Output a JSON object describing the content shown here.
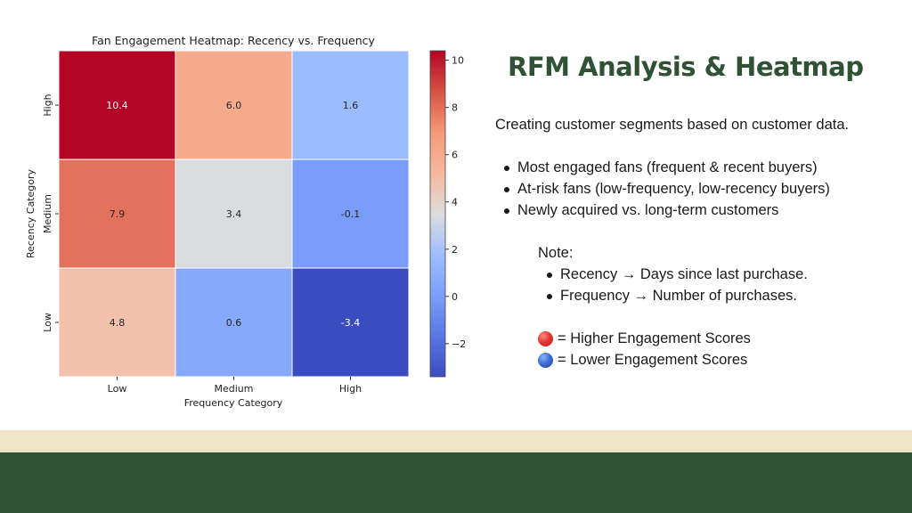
{
  "slide": {
    "title": "RFM Analysis & Heatmap",
    "intro": "Creating customer segments based on customer data.",
    "bullets": [
      "Most engaged fans (frequent & recent buyers)",
      "At-risk fans (low-frequency, low-recency buyers)",
      "Newly acquired vs. long-term customers"
    ],
    "note_label": "Note:",
    "notes": [
      "Recency → Days since last purchase.",
      "Frequency → Number of purchases."
    ],
    "legend": {
      "high": "= Higher Engagement Scores",
      "low": "= Lower Engagement Scores"
    }
  },
  "colors": {
    "title_green": "#2e5233",
    "band_cream": "#efe3c8",
    "band_green": "#2e5233",
    "high_dot": "#e53935",
    "low_dot": "#3f6fd8"
  },
  "chart_data": {
    "type": "heatmap",
    "title": "Fan Engagement Heatmap: Recency vs. Frequency",
    "xlabel": "Frequency Category",
    "ylabel": "Recency Category",
    "x_categories": [
      "Low",
      "Medium",
      "High"
    ],
    "y_categories": [
      "High",
      "Medium",
      "Low"
    ],
    "values": [
      [
        10.4,
        6.0,
        1.6
      ],
      [
        7.9,
        3.4,
        -0.1
      ],
      [
        4.8,
        0.6,
        -3.4
      ]
    ],
    "colorscale": "coolwarm",
    "vmin": -3.4,
    "vmax": 10.4,
    "colorbar_ticks": [
      -2,
      0,
      2,
      4,
      6,
      8,
      10
    ],
    "colorbar_tick_labels": [
      "−2",
      "0",
      "2",
      "4",
      "6",
      "8",
      "10"
    ],
    "annotation_format": "%.1f"
  }
}
